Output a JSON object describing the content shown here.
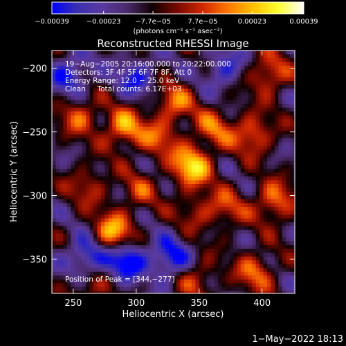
{
  "chart_data": {
    "type": "heatmap",
    "title": "Reconstructed RHESSI Image",
    "xlabel": "Heliocentric X (arcsec)",
    "ylabel": "Heliocentric Y (arcsec)",
    "xlim": [
      233,
      426
    ],
    "ylim": [
      -377,
      -186
    ],
    "x_ticks": [
      250,
      300,
      350,
      400
    ],
    "y_ticks": [
      -200,
      -250,
      -300,
      -350
    ],
    "x_tick_labels": [
      "250",
      "300",
      "350",
      "400"
    ],
    "y_tick_labels": [
      "−200",
      "−250",
      "−300",
      "−350"
    ],
    "colorbar": {
      "min": -0.00039,
      "max": 0.00039,
      "tick_values": [
        -0.00039,
        -0.00023,
        -7.7e-05,
        7.7e-05,
        0.00023,
        0.00039
      ],
      "tick_labels": [
        "−0.00039",
        "−0.00023",
        "−7.7e−05",
        "7.7e−05",
        "0.00023",
        "0.00039"
      ],
      "unit_label": "(photons cm⁻² s⁻¹ asec⁻²)",
      "colormap": [
        "#0000ff",
        "#3a2fb0",
        "#5a3aa0",
        "#4a2a6a",
        "#100000",
        "#7a0a00",
        "#d02800",
        "#ff7800",
        "#ffc000",
        "#ffff30",
        "#ffffff"
      ]
    },
    "annotations": [
      "19−Aug−2005 20:16:00.000 to 20:22:00.000",
      "Detectors: 3F 4F 5F 6F 7F 8F, Att 0",
      "Energy Range: 12.0 − 25.0 keV",
      "Clean     Total counts: 6.17E+03",
      "Position of Peak = [344,−277]"
    ],
    "peak": [
      344,
      -277
    ],
    "sources": [
      {
        "x": 344,
        "y": -277,
        "value": 0.00039
      },
      {
        "x": 282,
        "y": -330,
        "value": 0.00036
      },
      {
        "x": 290,
        "y": -247,
        "value": 0.00031
      },
      {
        "x": 255,
        "y": -237,
        "value": 0.00022
      },
      {
        "x": 330,
        "y": -227,
        "value": 0.00024
      },
      {
        "x": 318,
        "y": -255,
        "value": 0.0002
      },
      {
        "x": 362,
        "y": -247,
        "value": 0.00022
      },
      {
        "x": 393,
        "y": -252,
        "value": 0.00026
      },
      {
        "x": 405,
        "y": -205,
        "value": 0.00025
      },
      {
        "x": 410,
        "y": -305,
        "value": 0.00027
      },
      {
        "x": 372,
        "y": -310,
        "value": 0.00018
      },
      {
        "x": 262,
        "y": -292,
        "value": 0.00017
      },
      {
        "x": 395,
        "y": -360,
        "value": 0.00024
      },
      {
        "x": 348,
        "y": -365,
        "value": 0.00018
      },
      {
        "x": 302,
        "y": -297,
        "value": 0.00016
      },
      {
        "x": 260,
        "y": -375,
        "value": 0.00016
      },
      {
        "x": 348,
        "y": -312,
        "value": 0.00015
      }
    ],
    "negative_regions": [
      {
        "x": 292,
        "y": -350,
        "value": -0.00033
      },
      {
        "x": 327,
        "y": -350,
        "value": -0.00028
      },
      {
        "x": 248,
        "y": -205,
        "value": -0.00025
      },
      {
        "x": 260,
        "y": -348,
        "value": -0.00027
      },
      {
        "x": 370,
        "y": -200,
        "value": -0.00021
      },
      {
        "x": 300,
        "y": -207,
        "value": -0.00022
      }
    ],
    "grid": false
  },
  "timestamp": "1−May−2022 18:13"
}
